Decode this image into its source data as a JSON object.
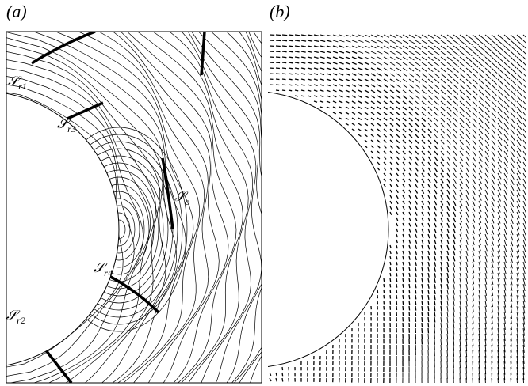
{
  "panels": [
    {
      "label": "(a)"
    },
    {
      "label": "(b)"
    }
  ],
  "annotations": [
    {
      "symbol": "𝒮",
      "subscript": "r1"
    },
    {
      "symbol": "𝒮",
      "subscript": "r3"
    },
    {
      "symbol": "𝒮",
      "subscript": "c"
    },
    {
      "symbol": "𝒮",
      "subscript": "r4"
    },
    {
      "symbol": "𝒮",
      "subscript": "r2"
    }
  ]
}
